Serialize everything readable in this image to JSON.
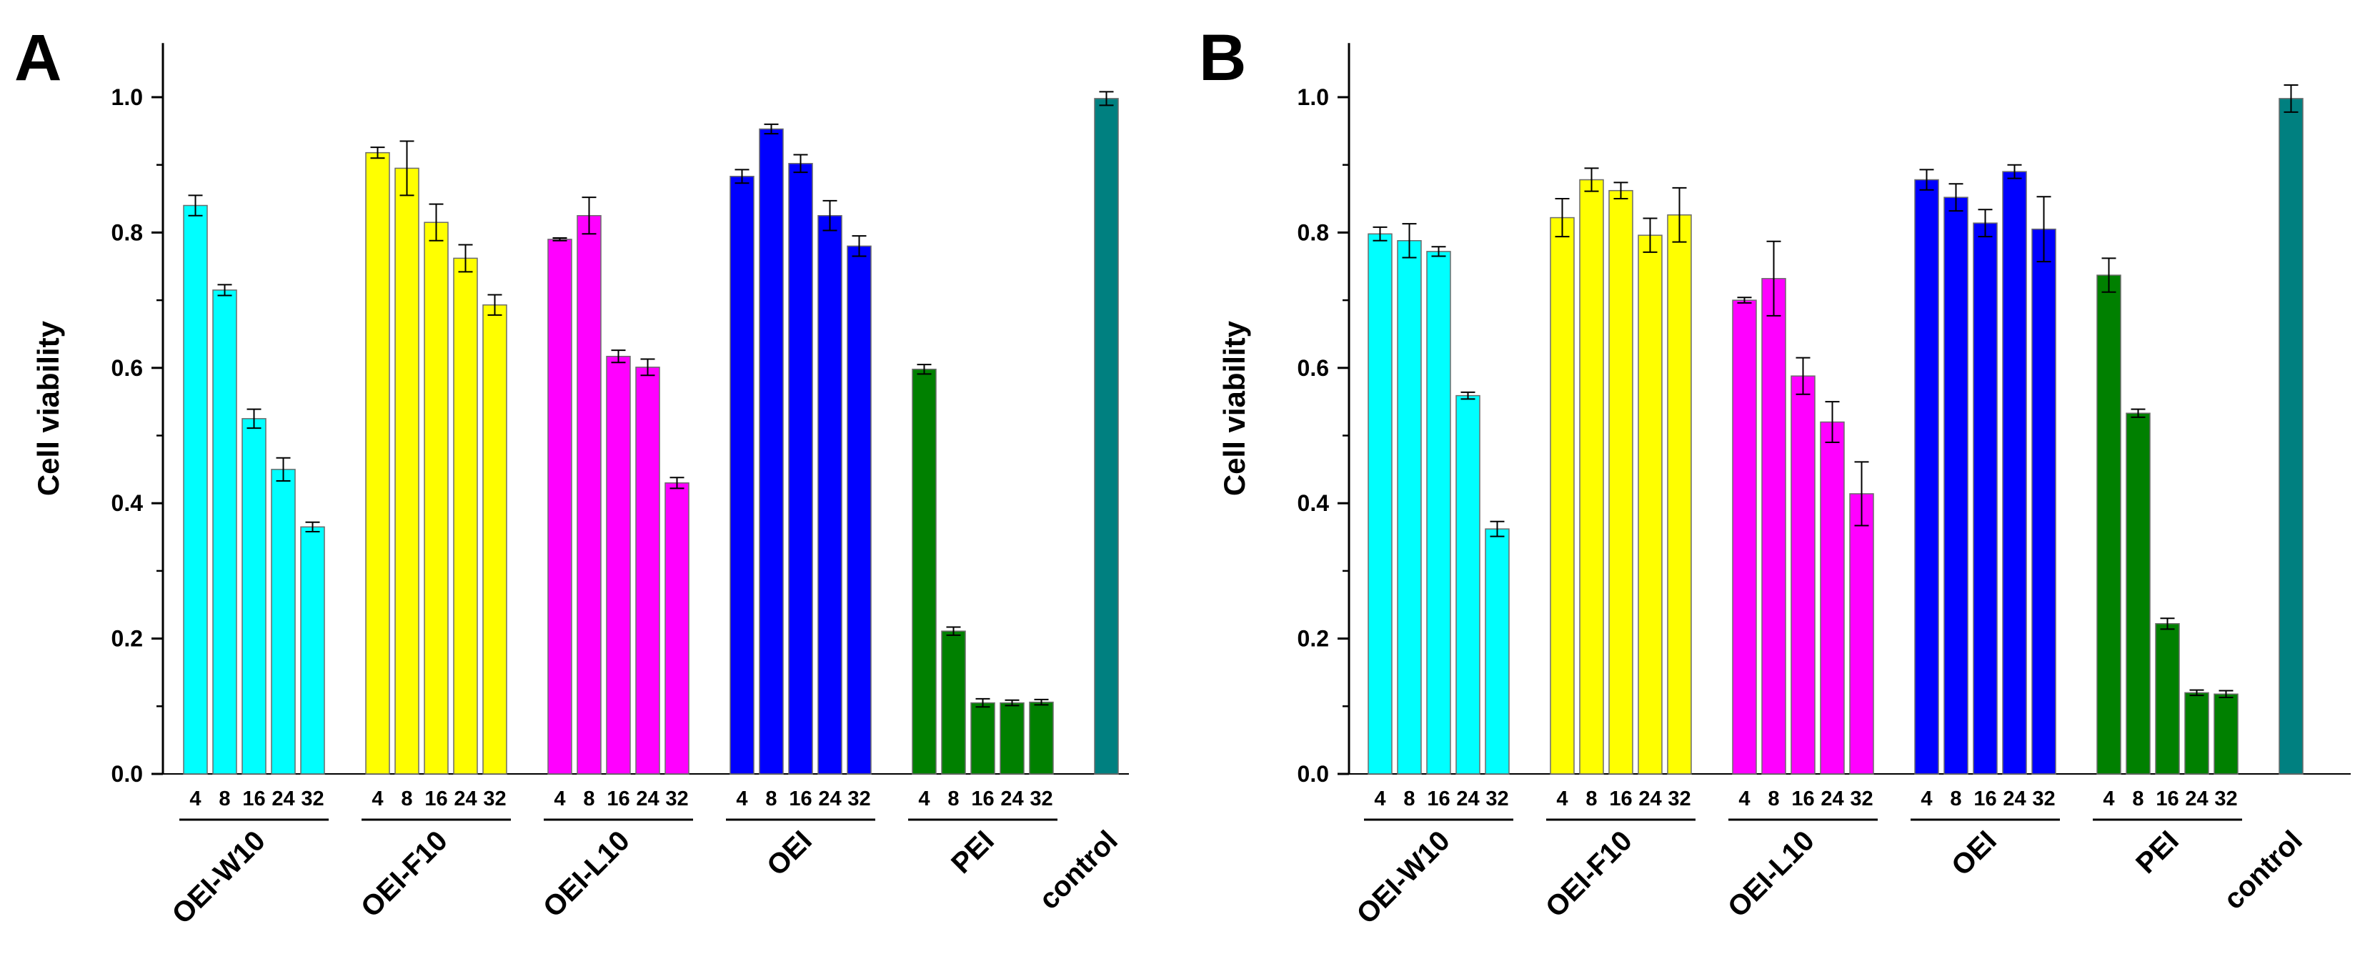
{
  "colors": {
    "OEI-W10": "#00FFFF",
    "OEI-F10": "#FFFF00",
    "OEI-L10": "#FF00FF",
    "OEI": "#0000FF",
    "PEI": "#008000",
    "control": "#008080"
  },
  "chart_data": [
    {
      "type": "bar",
      "panel_label": "A",
      "ylabel": "Cell viability",
      "ylim": [
        0,
        1.08
      ],
      "yticks": [
        "0.0",
        "0.2",
        "0.4",
        "0.6",
        "0.8",
        "1.0"
      ],
      "groups": [
        {
          "name": "OEI-W10",
          "doses": [
            "4",
            "8",
            "16",
            "24",
            "32"
          ],
          "values": [
            0.84,
            0.715,
            0.525,
            0.45,
            0.365
          ],
          "errors": [
            0.015,
            0.008,
            0.014,
            0.017,
            0.007
          ]
        },
        {
          "name": "OEI-F10",
          "doses": [
            "4",
            "8",
            "16",
            "24",
            "32"
          ],
          "values": [
            0.918,
            0.895,
            0.815,
            0.762,
            0.693
          ],
          "errors": [
            0.008,
            0.04,
            0.027,
            0.02,
            0.015
          ]
        },
        {
          "name": "OEI-L10",
          "doses": [
            "4",
            "8",
            "16",
            "24",
            "32"
          ],
          "values": [
            0.79,
            0.825,
            0.617,
            0.601,
            0.43
          ],
          "errors": [
            0.002,
            0.027,
            0.009,
            0.012,
            0.008
          ]
        },
        {
          "name": "OEI",
          "doses": [
            "4",
            "8",
            "16",
            "24",
            "32"
          ],
          "values": [
            0.883,
            0.953,
            0.902,
            0.825,
            0.78
          ],
          "errors": [
            0.01,
            0.007,
            0.013,
            0.022,
            0.015
          ]
        },
        {
          "name": "PEI",
          "doses": [
            "4",
            "8",
            "16",
            "24",
            "32"
          ],
          "values": [
            0.598,
            0.211,
            0.105,
            0.105,
            0.106
          ],
          "errors": [
            0.007,
            0.006,
            0.006,
            0.004,
            0.004
          ]
        },
        {
          "name": "control",
          "doses": [],
          "values": [
            0.998
          ],
          "errors": [
            0.01
          ]
        }
      ]
    },
    {
      "type": "bar",
      "panel_label": "B",
      "ylabel": "Cell viability",
      "ylim": [
        0,
        1.08
      ],
      "yticks": [
        "0.0",
        "0.2",
        "0.4",
        "0.6",
        "0.8",
        "1.0"
      ],
      "groups": [
        {
          "name": "OEI-W10",
          "doses": [
            "4",
            "8",
            "16",
            "24",
            "32"
          ],
          "values": [
            0.798,
            0.788,
            0.772,
            0.559,
            0.362
          ],
          "errors": [
            0.01,
            0.025,
            0.007,
            0.005,
            0.011
          ]
        },
        {
          "name": "OEI-F10",
          "doses": [
            "4",
            "8",
            "16",
            "24",
            "32"
          ],
          "values": [
            0.822,
            0.878,
            0.862,
            0.796,
            0.826
          ],
          "errors": [
            0.028,
            0.017,
            0.012,
            0.025,
            0.04
          ]
        },
        {
          "name": "OEI-L10",
          "doses": [
            "4",
            "8",
            "16",
            "24",
            "32"
          ],
          "values": [
            0.7,
            0.732,
            0.588,
            0.52,
            0.414
          ],
          "errors": [
            0.004,
            0.055,
            0.027,
            0.03,
            0.047
          ]
        },
        {
          "name": "OEI",
          "doses": [
            "4",
            "8",
            "16",
            "24",
            "32"
          ],
          "values": [
            0.878,
            0.852,
            0.814,
            0.89,
            0.805
          ],
          "errors": [
            0.015,
            0.02,
            0.02,
            0.01,
            0.048
          ]
        },
        {
          "name": "PEI",
          "doses": [
            "4",
            "8",
            "16",
            "24",
            "32"
          ],
          "values": [
            0.737,
            0.533,
            0.222,
            0.12,
            0.118
          ],
          "errors": [
            0.025,
            0.006,
            0.008,
            0.004,
            0.005
          ]
        },
        {
          "name": "control",
          "doses": [],
          "values": [
            0.998
          ],
          "errors": [
            0.02
          ]
        }
      ]
    }
  ]
}
